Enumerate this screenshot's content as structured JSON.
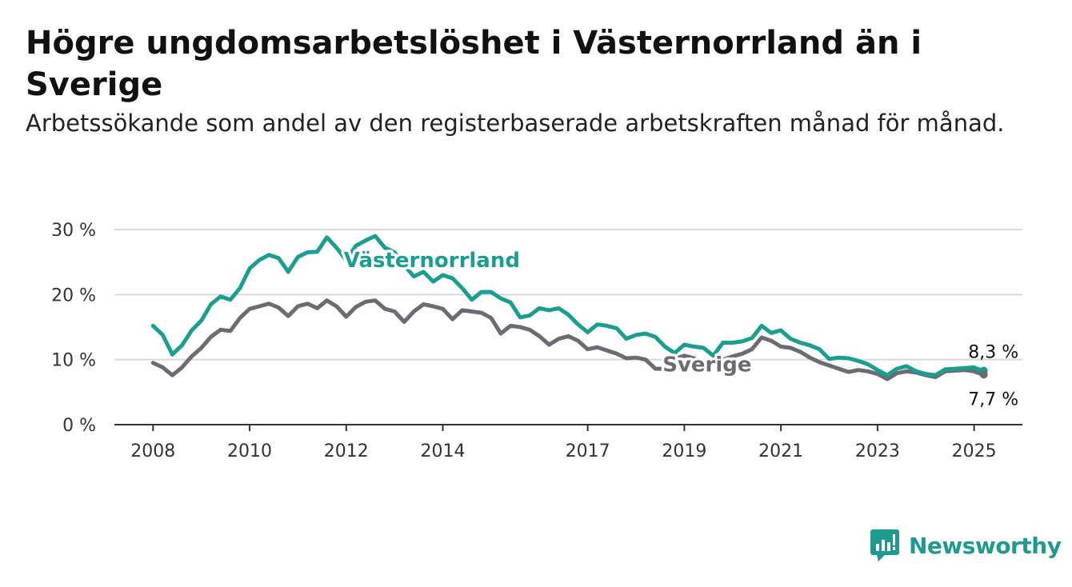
{
  "title": "Högre ungdomsarbetslöshet i Västernorrland än i Sverige",
  "subtitle": "Arbetssökande som andel av den registerbaserade arbetskraften månad för månad.",
  "brand": {
    "name": "Newsworthy",
    "icon": "bar-chart-icon",
    "color": "#1f9a8e"
  },
  "chart_data": {
    "type": "line",
    "title": "Högre ungdomsarbetslöshet i Västernorrland än i Sverige",
    "subtitle": "Arbetssökande som andel av den registerbaserade arbetskraften månad för månad.",
    "xlabel": "",
    "ylabel": "",
    "x_range": [
      2007.2,
      2026.0
    ],
    "ylim": [
      0,
      30
    ],
    "y_ticks": [
      0,
      10,
      20,
      30
    ],
    "y_tick_labels": [
      "0 %",
      "10 %",
      "20 %",
      "30 %"
    ],
    "x_ticks": [
      2008,
      2010,
      2012,
      2014,
      2017,
      2019,
      2021,
      2023,
      2025
    ],
    "x_tick_labels": [
      "2008",
      "2010",
      "2012",
      "2014",
      "2017",
      "2019",
      "2021",
      "2023",
      "2025"
    ],
    "grid": true,
    "legend": "inline labels",
    "series": [
      {
        "name": "Västernorrland",
        "color": "#1a9e90",
        "end_label": "8,3 %",
        "points": [
          [
            2008.0,
            15.2
          ],
          [
            2008.2,
            13.8
          ],
          [
            2008.4,
            10.8
          ],
          [
            2008.6,
            12.2
          ],
          [
            2008.8,
            14.5
          ],
          [
            2009.0,
            16.0
          ],
          [
            2009.2,
            18.5
          ],
          [
            2009.4,
            19.7
          ],
          [
            2009.6,
            19.2
          ],
          [
            2009.8,
            21.0
          ],
          [
            2010.0,
            24.0
          ],
          [
            2010.2,
            25.3
          ],
          [
            2010.4,
            26.1
          ],
          [
            2010.6,
            25.6
          ],
          [
            2010.8,
            23.5
          ],
          [
            2011.0,
            25.8
          ],
          [
            2011.2,
            26.5
          ],
          [
            2011.4,
            26.6
          ],
          [
            2011.6,
            28.8
          ],
          [
            2011.8,
            27.2
          ],
          [
            2012.0,
            25.3
          ],
          [
            2012.2,
            27.5
          ],
          [
            2012.4,
            28.3
          ],
          [
            2012.6,
            29.0
          ],
          [
            2012.8,
            27.2
          ],
          [
            2013.0,
            26.5
          ],
          [
            2013.2,
            24.5
          ],
          [
            2013.4,
            22.8
          ],
          [
            2013.6,
            23.5
          ],
          [
            2013.8,
            22.0
          ],
          [
            2014.0,
            23.0
          ],
          [
            2014.2,
            22.5
          ],
          [
            2014.4,
            21.0
          ],
          [
            2014.6,
            19.2
          ],
          [
            2014.8,
            20.4
          ],
          [
            2015.0,
            20.4
          ],
          [
            2015.2,
            19.4
          ],
          [
            2015.4,
            18.8
          ],
          [
            2015.6,
            16.5
          ],
          [
            2015.8,
            16.8
          ],
          [
            2016.0,
            17.9
          ],
          [
            2016.2,
            17.6
          ],
          [
            2016.4,
            17.9
          ],
          [
            2016.6,
            16.9
          ],
          [
            2016.8,
            15.4
          ],
          [
            2017.0,
            14.2
          ],
          [
            2017.2,
            15.4
          ],
          [
            2017.4,
            15.2
          ],
          [
            2017.6,
            14.8
          ],
          [
            2017.8,
            13.2
          ],
          [
            2018.0,
            13.8
          ],
          [
            2018.2,
            14.0
          ],
          [
            2018.4,
            13.5
          ],
          [
            2018.6,
            12.0
          ],
          [
            2018.8,
            11.0
          ],
          [
            2019.0,
            12.3
          ],
          [
            2019.2,
            12.0
          ],
          [
            2019.4,
            11.8
          ],
          [
            2019.6,
            10.6
          ],
          [
            2019.8,
            12.6
          ],
          [
            2020.0,
            12.6
          ],
          [
            2020.2,
            12.8
          ],
          [
            2020.4,
            13.3
          ],
          [
            2020.6,
            15.2
          ],
          [
            2020.8,
            14.1
          ],
          [
            2021.0,
            14.5
          ],
          [
            2021.2,
            13.2
          ],
          [
            2021.4,
            12.6
          ],
          [
            2021.6,
            12.2
          ],
          [
            2021.8,
            11.6
          ],
          [
            2022.0,
            10.1
          ],
          [
            2022.2,
            10.3
          ],
          [
            2022.4,
            10.2
          ],
          [
            2022.6,
            9.8
          ],
          [
            2022.8,
            9.3
          ],
          [
            2023.0,
            8.4
          ],
          [
            2023.2,
            7.6
          ],
          [
            2023.4,
            8.6
          ],
          [
            2023.6,
            9.0
          ],
          [
            2023.8,
            8.2
          ],
          [
            2024.0,
            7.8
          ],
          [
            2024.2,
            7.6
          ],
          [
            2024.4,
            8.5
          ],
          [
            2024.6,
            8.6
          ],
          [
            2024.8,
            8.7
          ],
          [
            2025.0,
            8.8
          ],
          [
            2025.1,
            8.5
          ],
          [
            2025.2,
            8.3
          ]
        ]
      },
      {
        "name": "Sverige",
        "color": "#6b6b73",
        "end_label": "7,7 %",
        "points": [
          [
            2008.0,
            9.5
          ],
          [
            2008.2,
            8.8
          ],
          [
            2008.4,
            7.6
          ],
          [
            2008.6,
            8.8
          ],
          [
            2008.8,
            10.5
          ],
          [
            2009.0,
            11.8
          ],
          [
            2009.2,
            13.5
          ],
          [
            2009.4,
            14.6
          ],
          [
            2009.6,
            14.4
          ],
          [
            2009.8,
            16.4
          ],
          [
            2010.0,
            17.8
          ],
          [
            2010.2,
            18.2
          ],
          [
            2010.4,
            18.6
          ],
          [
            2010.6,
            18.0
          ],
          [
            2010.8,
            16.7
          ],
          [
            2011.0,
            18.2
          ],
          [
            2011.2,
            18.6
          ],
          [
            2011.4,
            17.9
          ],
          [
            2011.6,
            19.1
          ],
          [
            2011.8,
            18.2
          ],
          [
            2012.0,
            16.6
          ],
          [
            2012.2,
            18.1
          ],
          [
            2012.4,
            18.9
          ],
          [
            2012.6,
            19.1
          ],
          [
            2012.8,
            17.8
          ],
          [
            2013.0,
            17.4
          ],
          [
            2013.2,
            15.8
          ],
          [
            2013.4,
            17.4
          ],
          [
            2013.6,
            18.5
          ],
          [
            2013.8,
            18.2
          ],
          [
            2014.0,
            17.8
          ],
          [
            2014.2,
            16.2
          ],
          [
            2014.4,
            17.6
          ],
          [
            2014.6,
            17.4
          ],
          [
            2014.8,
            17.2
          ],
          [
            2015.0,
            16.4
          ],
          [
            2015.2,
            14.0
          ],
          [
            2015.4,
            15.2
          ],
          [
            2015.6,
            15.0
          ],
          [
            2015.8,
            14.6
          ],
          [
            2016.0,
            13.6
          ],
          [
            2016.2,
            12.3
          ],
          [
            2016.4,
            13.2
          ],
          [
            2016.6,
            13.6
          ],
          [
            2016.8,
            12.9
          ],
          [
            2017.0,
            11.6
          ],
          [
            2017.2,
            11.9
          ],
          [
            2017.4,
            11.4
          ],
          [
            2017.6,
            10.9
          ],
          [
            2017.8,
            10.2
          ],
          [
            2018.0,
            10.3
          ],
          [
            2018.2,
            10.0
          ],
          [
            2018.4,
            8.6
          ],
          [
            2018.6,
            8.6
          ],
          [
            2018.8,
            10.1
          ],
          [
            2019.0,
            10.6
          ],
          [
            2019.2,
            10.2
          ],
          [
            2019.4,
            9.5
          ],
          [
            2019.6,
            9.4
          ],
          [
            2019.8,
            10.0
          ],
          [
            2020.0,
            10.5
          ],
          [
            2020.2,
            10.9
          ],
          [
            2020.4,
            11.6
          ],
          [
            2020.6,
            13.4
          ],
          [
            2020.8,
            12.9
          ],
          [
            2021.0,
            12.0
          ],
          [
            2021.2,
            11.8
          ],
          [
            2021.4,
            11.2
          ],
          [
            2021.6,
            10.3
          ],
          [
            2021.8,
            9.6
          ],
          [
            2022.0,
            9.1
          ],
          [
            2022.2,
            8.6
          ],
          [
            2022.4,
            8.1
          ],
          [
            2022.6,
            8.4
          ],
          [
            2022.8,
            8.2
          ],
          [
            2023.0,
            7.8
          ],
          [
            2023.2,
            7.0
          ],
          [
            2023.4,
            7.9
          ],
          [
            2023.6,
            8.2
          ],
          [
            2023.8,
            8.0
          ],
          [
            2024.0,
            7.6
          ],
          [
            2024.2,
            7.3
          ],
          [
            2024.4,
            8.2
          ],
          [
            2024.6,
            8.3
          ],
          [
            2024.8,
            8.4
          ],
          [
            2025.0,
            8.2
          ],
          [
            2025.1,
            7.9
          ],
          [
            2025.2,
            7.7
          ]
        ]
      }
    ]
  }
}
